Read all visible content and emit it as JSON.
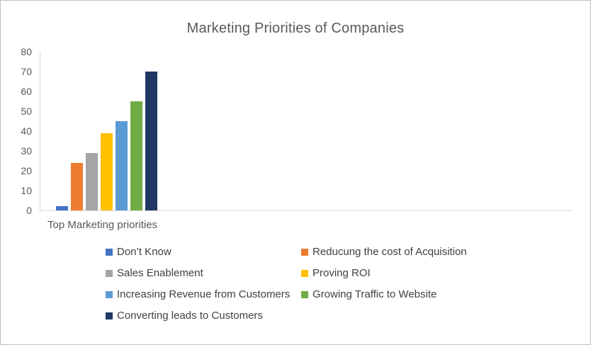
{
  "chart_data": {
    "type": "bar",
    "title": "Marketing Priorities of Companies",
    "x_category_label": "Top Marketing priorities",
    "categories": [
      "Top Marketing priorities"
    ],
    "series": [
      {
        "name": "Don’t Know",
        "value": 2,
        "color": "#4472C4"
      },
      {
        "name": "Reducung the cost of Acquisition",
        "value": 24,
        "color": "#ED7D31"
      },
      {
        "name": "Sales Enablement",
        "value": 29,
        "color": "#A5A5A5"
      },
      {
        "name": "Proving ROI",
        "value": 39,
        "color": "#FFC000"
      },
      {
        "name": "Increasing Revenue from Customers",
        "value": 45,
        "color": "#5B9BD5"
      },
      {
        "name": "Growing Traffic to Website",
        "value": 55,
        "color": "#70AD47"
      },
      {
        "name": "Converting leads to Customers",
        "value": 70,
        "color": "#1F3864"
      }
    ],
    "ylim": [
      0,
      80
    ],
    "yticks": [
      0,
      10,
      20,
      30,
      40,
      50,
      60,
      70,
      80
    ],
    "grid": false,
    "legend_position": "bottom",
    "legend_columns": 2
  }
}
